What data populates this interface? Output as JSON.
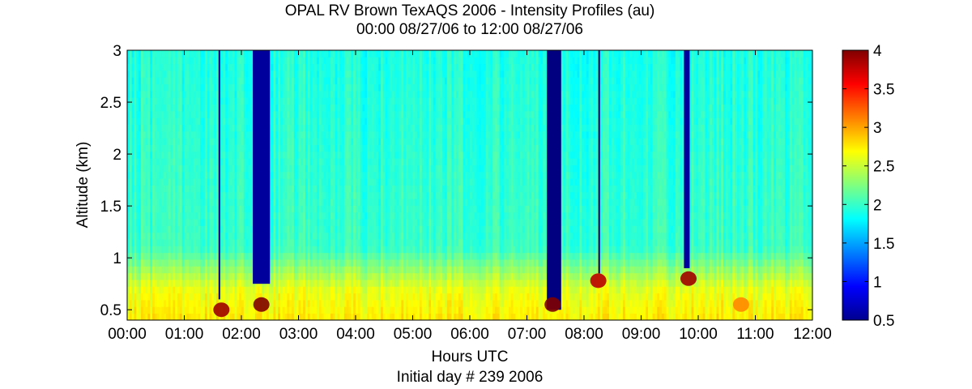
{
  "chart_data": {
    "type": "heatmap",
    "title": "OPAL RV Brown TexAQS 2006 - Intensity Profiles (au)",
    "subtitle": "00:00 08/27/06 to 12:00 08/27/06",
    "xlabel": "Hours UTC",
    "xlabel2": "Initial day # 239  2006",
    "ylabel": "Altitude (km)",
    "x_ticks": [
      "00:00",
      "01:00",
      "02:00",
      "03:00",
      "04:00",
      "05:00",
      "06:00",
      "07:00",
      "08:00",
      "09:00",
      "10:00",
      "11:00",
      "12:00"
    ],
    "xlim_hours": [
      0,
      12
    ],
    "y_ticks": [
      "0.5",
      "1",
      "1.5",
      "2",
      "2.5",
      "3"
    ],
    "y_tick_values": [
      0.5,
      1,
      1.5,
      2,
      2.5,
      3
    ],
    "ylim": [
      0.4,
      3
    ],
    "colorbar": {
      "colormap": "jet",
      "ticks": [
        "0.5",
        "1",
        "1.5",
        "2",
        "2.5",
        "3",
        "3.5",
        "4"
      ],
      "tick_values": [
        0.5,
        1,
        1.5,
        2,
        2.5,
        3,
        3.5,
        4
      ],
      "range": [
        0.5,
        4
      ]
    },
    "background_intensity": {
      "above_1km": 2.0,
      "boundary_layer_below_0.8km": 2.6
    },
    "features": [
      {
        "kind": "low-signal gap",
        "start_hour": 1.6,
        "end_hour": 1.62,
        "bottom_km": 0.6,
        "value": 0.5
      },
      {
        "kind": "low-signal gap",
        "start_hour": 2.2,
        "end_hour": 2.5,
        "bottom_km": 0.75,
        "value": 0.6
      },
      {
        "kind": "low-signal gap",
        "start_hour": 7.35,
        "end_hour": 7.6,
        "bottom_km": 0.5,
        "value": 0.5
      },
      {
        "kind": "low-signal gap",
        "start_hour": 8.25,
        "end_hour": 8.28,
        "bottom_km": 0.85,
        "value": 0.5
      },
      {
        "kind": "low-signal gap",
        "start_hour": 9.75,
        "end_hour": 9.85,
        "bottom_km": 0.9,
        "value": 0.6
      },
      {
        "kind": "high-intensity layer",
        "center_hour": 1.65,
        "altitude_km": 0.5,
        "value": 3.9
      },
      {
        "kind": "high-intensity layer",
        "center_hour": 2.35,
        "altitude_km": 0.55,
        "value": 4.0
      },
      {
        "kind": "high-intensity layer",
        "center_hour": 7.45,
        "altitude_km": 0.55,
        "value": 4.0
      },
      {
        "kind": "high-intensity layer",
        "center_hour": 8.25,
        "altitude_km": 0.78,
        "value": 3.8
      },
      {
        "kind": "high-intensity layer",
        "center_hour": 9.83,
        "altitude_km": 0.8,
        "value": 3.9
      },
      {
        "kind": "high-intensity layer",
        "center_hour": 10.75,
        "altitude_km": 0.55,
        "value": 3.1
      }
    ]
  }
}
